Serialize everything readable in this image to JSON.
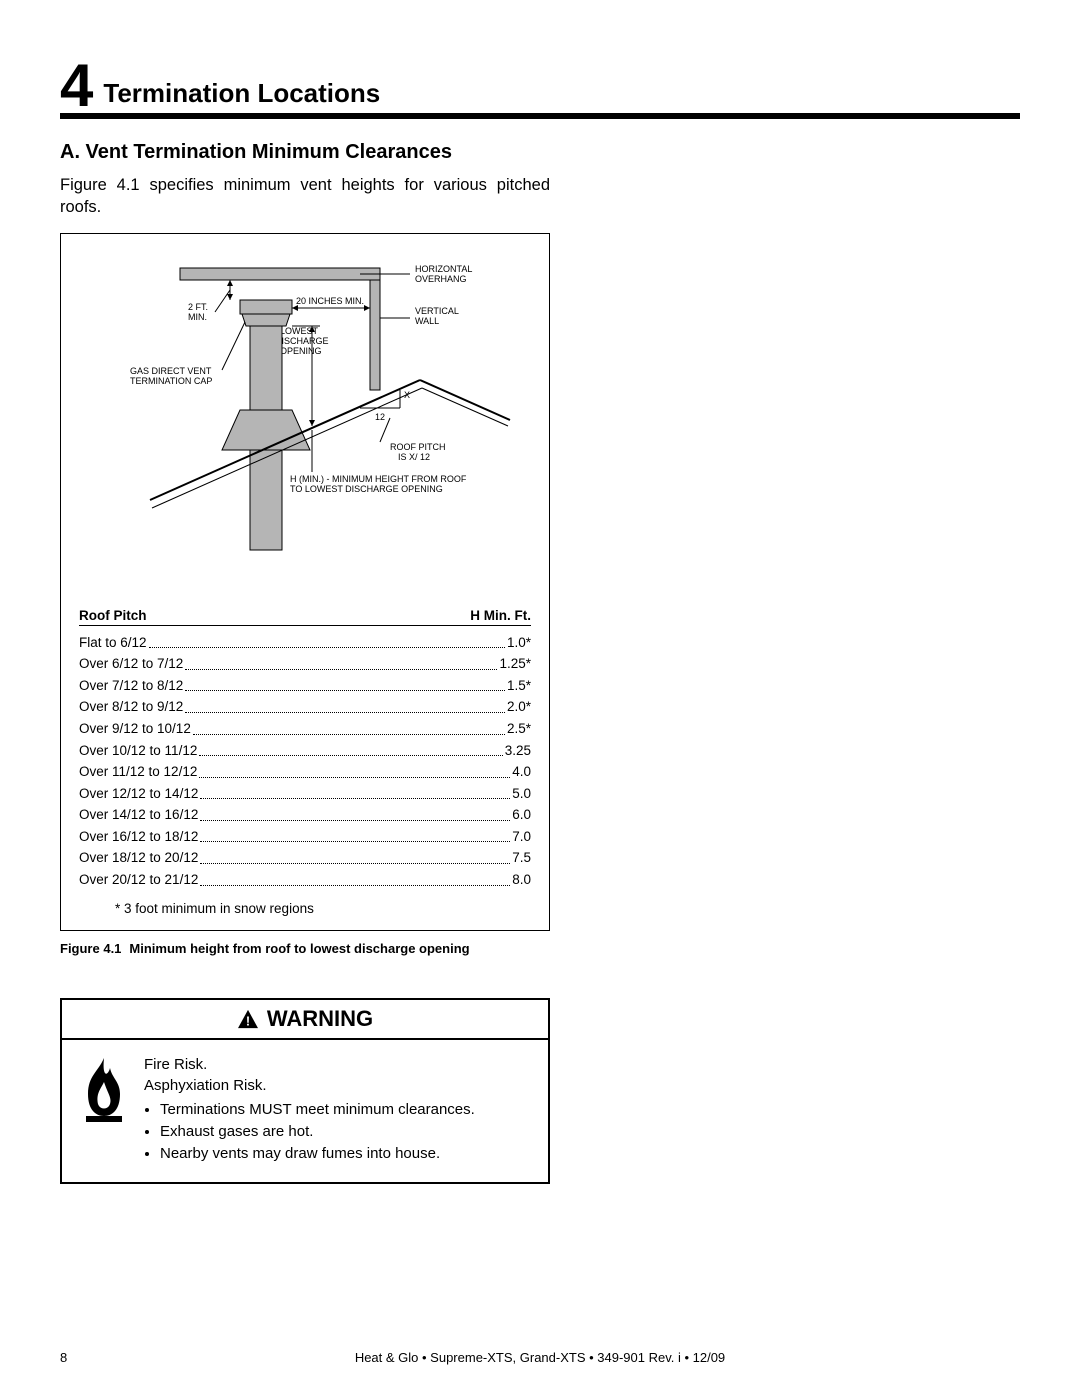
{
  "section": {
    "number": "4",
    "title": "Termination Locations"
  },
  "subsection": {
    "title": "A.  Vent Termination Minimum Clearances"
  },
  "intro": "Figure 4.1 specifies minimum vent heights for various pitched roofs.",
  "diagram": {
    "labels": {
      "horizontal_overhang": "HORIZONTAL\nOVERHANG",
      "two_ft_min": "2 FT.\nMIN.",
      "twenty_in_min": "20 INCHES MIN.",
      "vertical_wall": "VERTICAL\nWALL",
      "lowest_discharge": "LOWEST\nDISCHARGE\nOPENING",
      "gas_direct_vent": "GAS DIRECT VENT\nTERMINATION CAP",
      "x": "X",
      "twelve": "12",
      "roof_pitch": "ROOF PITCH\nIS  X/ 12",
      "hmin_note": "H (MIN.) - MINIMUM HEIGHT FROM ROOF\nTO LOWEST DISCHARGE OPENING"
    },
    "colors": {
      "pipe_fill": "#b5b5b5",
      "cap_fill": "#b5b5b5",
      "stroke": "#000000",
      "bg": "#ffffff"
    }
  },
  "table": {
    "col1": "Roof Pitch",
    "col2": "H Min. Ft.",
    "rows": [
      {
        "label": "Flat to 6/12",
        "value": "1.0*"
      },
      {
        "label": "Over 6/12 to 7/12",
        "value": "1.25*"
      },
      {
        "label": "Over 7/12 to 8/12",
        "value": "1.5*"
      },
      {
        "label": "Over 8/12 to 9/12",
        "value": "2.0*"
      },
      {
        "label": "Over 9/12 to 10/12",
        "value": "2.5*"
      },
      {
        "label": "Over 10/12 to 11/12",
        "value": "3.25"
      },
      {
        "label": "Over 11/12 to 12/12",
        "value": "4.0"
      },
      {
        "label": "Over 12/12 to 14/12",
        "value": "5.0"
      },
      {
        "label": "Over 14/12 to 16/12",
        "value": "6.0"
      },
      {
        "label": "Over 16/12 to 18/12",
        "value": "7.0"
      },
      {
        "label": "Over 18/12 to 20/12",
        "value": "7.5"
      },
      {
        "label": "Over 20/12 to 21/12",
        "value": "8.0"
      }
    ],
    "snow_note": "* 3 foot minimum in snow regions",
    "caption_label": "Figure 4.1",
    "caption_text": "Minimum height from roof to lowest discharge opening"
  },
  "warning": {
    "title": "WARNING",
    "fire_risk": "Fire Risk.",
    "asphyx_risk": "Asphyxiation Risk.",
    "bullets": [
      "Terminations MUST meet minimum clearances.",
      "Exhaust gases are hot.",
      "Nearby vents may draw fumes into house."
    ]
  },
  "footer": {
    "page": "8",
    "line": "Heat & Glo  •  Supreme-XTS, Grand-XTS  •  349-901 Rev. i  •  12/09"
  }
}
